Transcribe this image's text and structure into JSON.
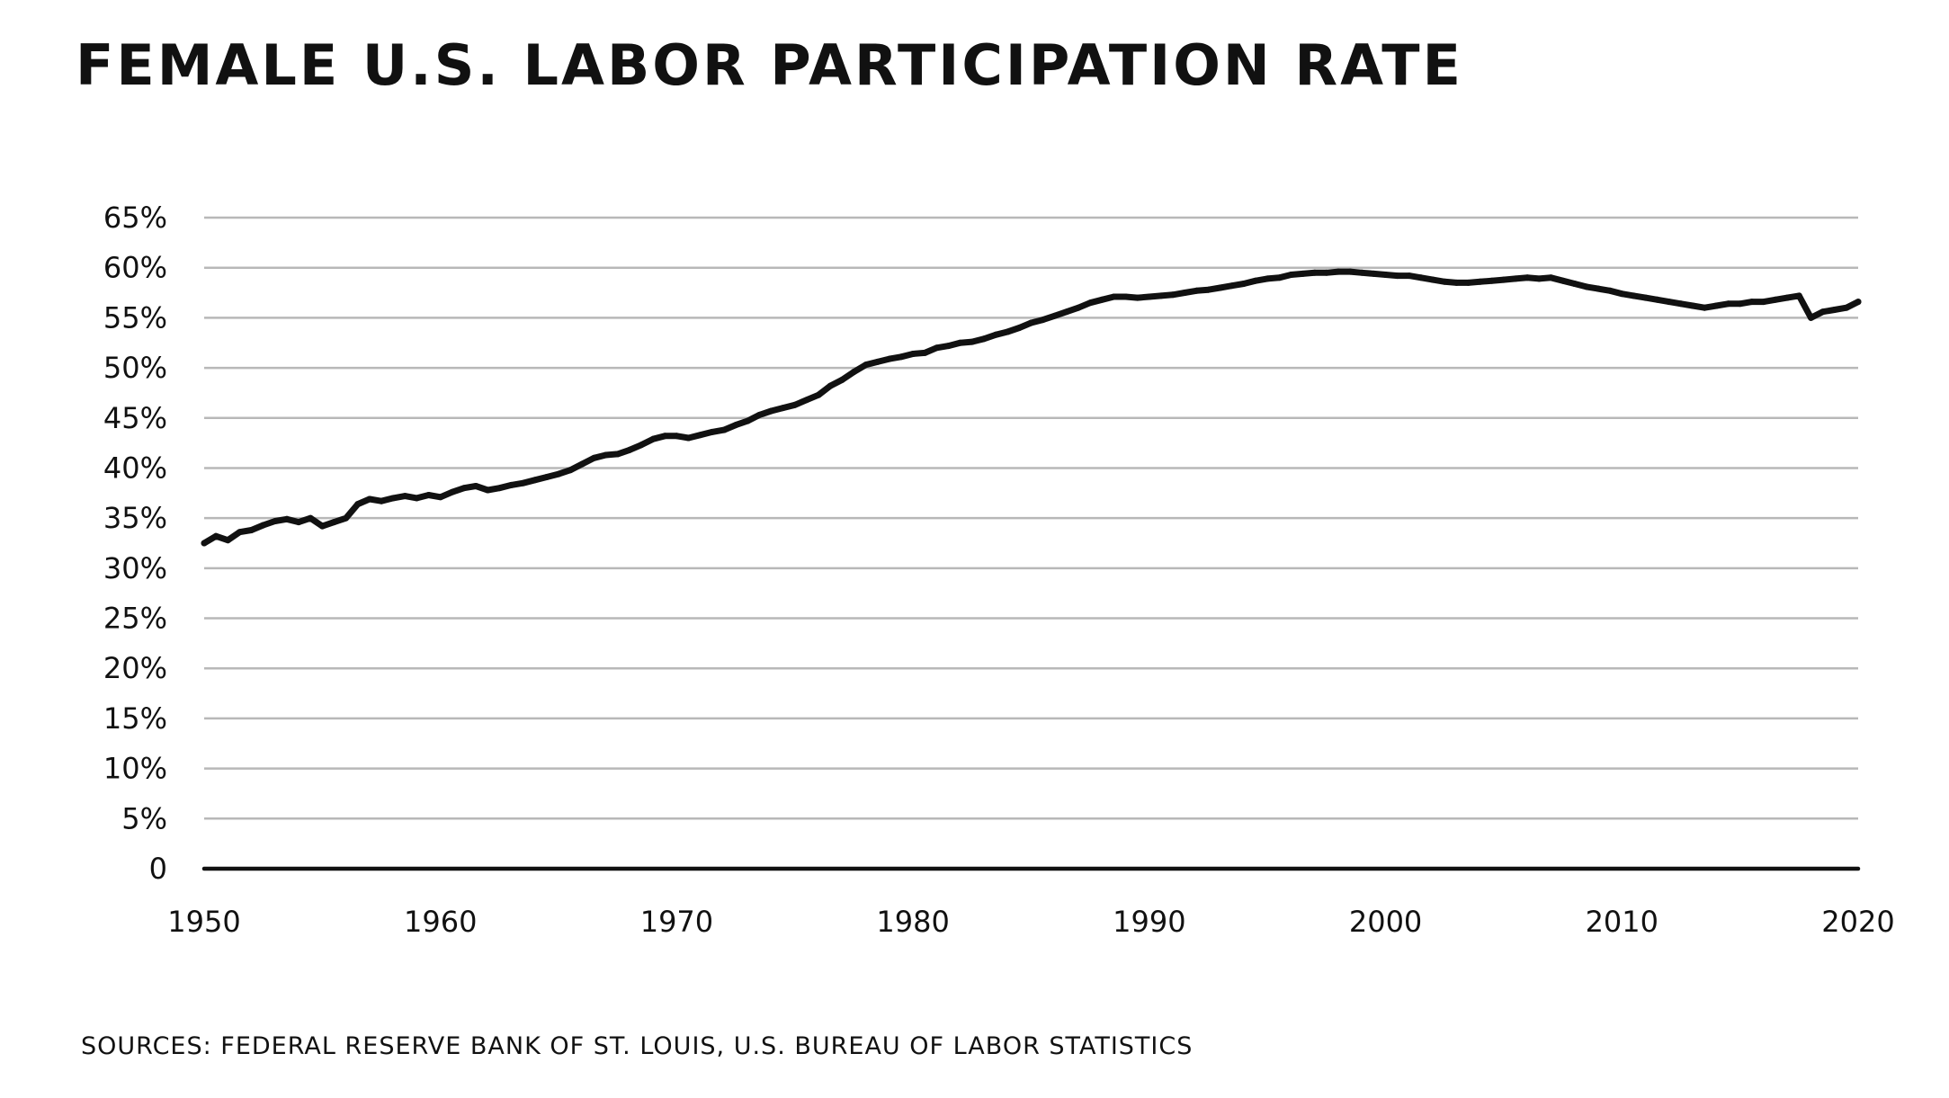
{
  "title": "FEMALE U.S. LABOR PARTICIPATION RATE",
  "source": "SOURCES: FEDERAL RESERVE BANK OF ST. LOUIS, U.S. BUREAU OF LABOR STATISTICS",
  "colors": {
    "line": "#111111",
    "grid": "#b8b8b8",
    "axis": "#111111",
    "background": "#ffffff"
  },
  "chart_data": {
    "type": "line",
    "title": "FEMALE U.S. LABOR PARTICIPATION RATE",
    "xlabel": "",
    "ylabel": "",
    "xlim": [
      1950,
      2020
    ],
    "ylim": [
      0,
      65
    ],
    "grid": true,
    "legend": "none",
    "x_ticks": [
      {
        "value": 1950,
        "label": "1950"
      },
      {
        "value": 1960,
        "label": "1960"
      },
      {
        "value": 1970,
        "label": "1970"
      },
      {
        "value": 1980,
        "label": "1980"
      },
      {
        "value": 1990,
        "label": "1990"
      },
      {
        "value": 2000,
        "label": "2000"
      },
      {
        "value": 2010,
        "label": "2010"
      },
      {
        "value": 2020,
        "label": "2020"
      }
    ],
    "y_ticks": [
      {
        "value": 0,
        "label": "0"
      },
      {
        "value": 5,
        "label": "5%"
      },
      {
        "value": 10,
        "label": "10%"
      },
      {
        "value": 15,
        "label": "15%"
      },
      {
        "value": 20,
        "label": "20%"
      },
      {
        "value": 25,
        "label": "25%"
      },
      {
        "value": 30,
        "label": "30%"
      },
      {
        "value": 35,
        "label": "35%"
      },
      {
        "value": 40,
        "label": "40%"
      },
      {
        "value": 45,
        "label": "45%"
      },
      {
        "value": 50,
        "label": "50%"
      },
      {
        "value": 55,
        "label": "55%"
      },
      {
        "value": 60,
        "label": "60%"
      },
      {
        "value": 65,
        "label": "65%"
      }
    ],
    "series": [
      {
        "x": [
          1950,
          1950.5,
          1951,
          1951.5,
          1952,
          1952.5,
          1953,
          1953.5,
          1954,
          1954.5,
          1955,
          1955.5,
          1956,
          1956.5,
          1957,
          1957.5,
          1958,
          1958.5,
          1959,
          1959.5,
          1960,
          1960.5,
          1961,
          1961.5,
          1962,
          1962.5,
          1963,
          1963.5,
          1964,
          1964.5,
          1965,
          1965.5,
          1966,
          1966.5,
          1967,
          1967.5,
          1968,
          1968.5,
          1969,
          1969.5,
          1970,
          1970.5,
          1971,
          1971.5,
          1972,
          1972.5,
          1973,
          1973.5,
          1974,
          1974.5,
          1975,
          1975.5,
          1976,
          1976.5,
          1977,
          1977.5,
          1978,
          1978.5,
          1979,
          1979.5,
          1980,
          1980.5,
          1981,
          1981.5,
          1982,
          1982.5,
          1983,
          1983.5,
          1984,
          1984.5,
          1985,
          1985.5,
          1986,
          1986.5,
          1987,
          1987.5,
          1988,
          1988.5,
          1989,
          1989.5,
          1990,
          1990.5,
          1991,
          1991.5,
          1992,
          1992.5,
          1993,
          1993.5,
          1994,
          1994.5,
          1995,
          1995.5,
          1996,
          1996.5,
          1997,
          1997.5,
          1998,
          1998.5,
          1999,
          1999.5,
          2000,
          2000.5,
          2001,
          2001.5,
          2002,
          2002.5,
          2003,
          2003.5,
          2004,
          2004.5,
          2005,
          2005.5,
          2006,
          2006.5,
          2007,
          2007.5,
          2008,
          2008.5,
          2009,
          2009.5,
          2010,
          2010.5,
          2011,
          2011.5,
          2012,
          2012.5,
          2013,
          2013.5,
          2014,
          2014.5,
          2015,
          2015.5,
          2016,
          2016.5,
          2017,
          2017.5,
          2018,
          2018.5,
          2019,
          2019.5,
          2020
        ],
        "values": [
          32.5,
          33.2,
          32.8,
          33.6,
          33.8,
          34.3,
          34.7,
          34.9,
          34.6,
          35.0,
          34.2,
          34.6,
          35.0,
          36.4,
          36.9,
          36.7,
          37.0,
          37.2,
          37.0,
          37.3,
          37.1,
          37.6,
          38.0,
          38.2,
          37.8,
          38.0,
          38.3,
          38.5,
          38.8,
          39.1,
          39.4,
          39.8,
          40.4,
          41.0,
          41.3,
          41.4,
          41.8,
          42.3,
          42.9,
          43.2,
          43.2,
          43.0,
          43.3,
          43.6,
          43.8,
          44.3,
          44.7,
          45.3,
          45.7,
          46.0,
          46.3,
          46.8,
          47.3,
          48.2,
          48.8,
          49.6,
          50.3,
          50.6,
          50.9,
          51.1,
          51.4,
          51.5,
          52.0,
          52.2,
          52.5,
          52.6,
          52.9,
          53.3,
          53.6,
          54.0,
          54.5,
          54.8,
          55.2,
          55.6,
          56.0,
          56.5,
          56.8,
          57.1,
          57.1,
          57.0,
          57.1,
          57.2,
          57.3,
          57.5,
          57.7,
          57.8,
          58.0,
          58.2,
          58.4,
          58.7,
          58.9,
          59.0,
          59.3,
          59.4,
          59.5,
          59.5,
          59.6,
          59.6,
          59.5,
          59.4,
          59.3,
          59.2,
          59.2,
          59.0,
          58.8,
          58.6,
          58.5,
          58.5,
          58.6,
          58.7,
          58.8,
          58.9,
          59.0,
          58.9,
          59.0,
          58.7,
          58.4,
          58.1,
          57.9,
          57.7,
          57.4,
          57.2,
          57.0,
          56.8,
          56.6,
          56.4,
          56.2,
          56.0,
          56.2,
          56.4,
          56.4,
          56.6,
          56.6,
          56.8,
          57.0,
          57.2,
          55.0,
          55.6,
          55.8,
          56.0,
          56.6
        ]
      }
    ]
  }
}
